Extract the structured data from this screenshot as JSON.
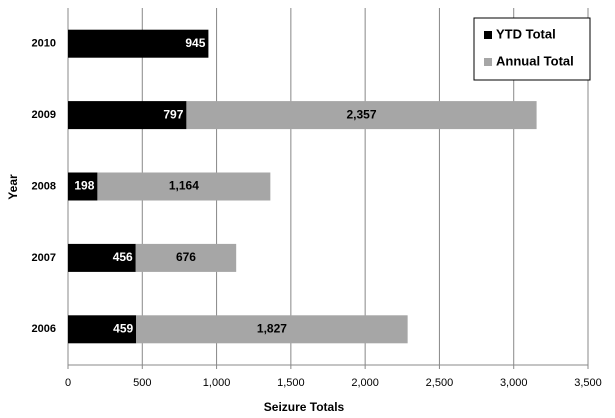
{
  "chart_data": {
    "type": "stacked-barh",
    "x_label": "Seizure Totals",
    "y_label": "Year",
    "categories": [
      "2010",
      "2009",
      "2008",
      "2007",
      "2006"
    ],
    "series": [
      {
        "name": "YTD Total",
        "color": "#000000",
        "values": [
          945,
          797,
          198,
          456,
          459
        ]
      },
      {
        "name": "Annual Total",
        "color": "#a6a6a6",
        "values": [
          null,
          2357,
          1164,
          676,
          1827
        ],
        "value_labels": [
          null,
          "2,357",
          "1,164",
          "676",
          "1,827"
        ]
      }
    ],
    "xlim": [
      0,
      3500
    ],
    "xticks": [
      0,
      500,
      {
        "value": 1000,
        "label": "1,000"
      },
      {
        "value": 1500,
        "label": "1,500"
      },
      {
        "value": 2000,
        "label": "2,000"
      },
      {
        "value": 2500,
        "label": "2,500"
      },
      {
        "value": 3000,
        "label": "3,000"
      },
      {
        "value": 3500,
        "label": "3,500"
      }
    ],
    "grid": true,
    "legend": "upper-right"
  }
}
